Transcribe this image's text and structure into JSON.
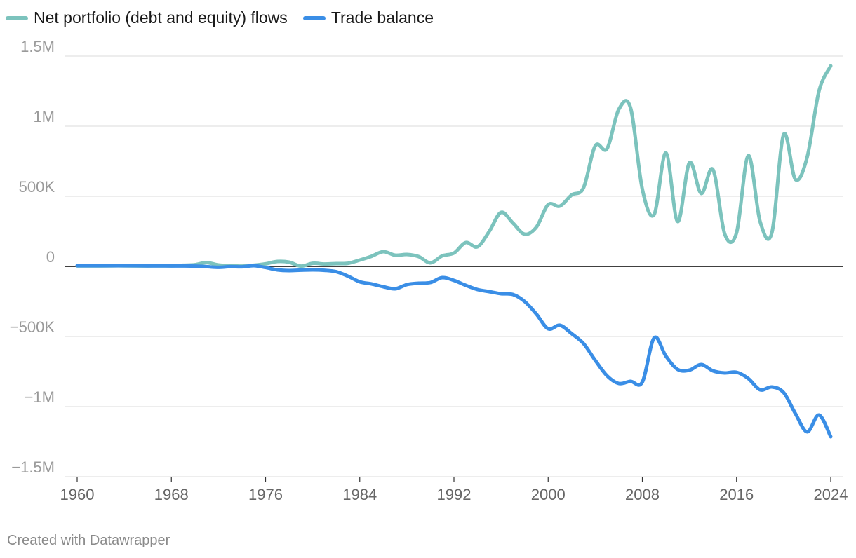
{
  "chart_data": {
    "type": "line",
    "title": "",
    "xlabel": "",
    "ylabel": "",
    "xlim": [
      1960,
      2024
    ],
    "ylim": [
      -1500000,
      1500000
    ],
    "grid": true,
    "legend_position": "top-left",
    "x_ticks": [
      1960,
      1968,
      1976,
      1984,
      1992,
      2000,
      2008,
      2016,
      2024
    ],
    "y_ticks": [
      {
        "value": 1500000,
        "label": "1.5M"
      },
      {
        "value": 1000000,
        "label": "1M"
      },
      {
        "value": 500000,
        "label": "500K"
      },
      {
        "value": 0,
        "label": "0"
      },
      {
        "value": -500000,
        "label": "−500K"
      },
      {
        "value": -1000000,
        "label": "−1M"
      },
      {
        "value": -1500000,
        "label": "−1.5M"
      }
    ],
    "x": [
      1960,
      1961,
      1962,
      1963,
      1964,
      1965,
      1966,
      1967,
      1968,
      1969,
      1970,
      1971,
      1972,
      1973,
      1974,
      1975,
      1976,
      1977,
      1978,
      1979,
      1980,
      1981,
      1982,
      1983,
      1984,
      1985,
      1986,
      1987,
      1988,
      1989,
      1990,
      1991,
      1992,
      1993,
      1994,
      1995,
      1996,
      1997,
      1998,
      1999,
      2000,
      2001,
      2002,
      2003,
      2004,
      2005,
      2006,
      2007,
      2008,
      2009,
      2010,
      2011,
      2012,
      2013,
      2014,
      2015,
      2016,
      2017,
      2018,
      2019,
      2020,
      2021,
      2022,
      2023,
      2024
    ],
    "series": [
      {
        "name": "Net portfolio (debt and equity) flows",
        "color": "#7cc3bd",
        "values": [
          3000,
          3000,
          3000,
          4000,
          4000,
          3000,
          3000,
          4000,
          4000,
          8000,
          12000,
          27000,
          10000,
          5000,
          2000,
          8000,
          18000,
          35000,
          30000,
          2000,
          22000,
          17000,
          20000,
          22000,
          45000,
          72000,
          105000,
          80000,
          85000,
          70000,
          25000,
          75000,
          95000,
          170000,
          140000,
          250000,
          385000,
          310000,
          230000,
          280000,
          440000,
          430000,
          510000,
          560000,
          860000,
          840000,
          1120000,
          1130000,
          550000,
          370000,
          810000,
          320000,
          740000,
          520000,
          690000,
          230000,
          240000,
          790000,
          320000,
          240000,
          940000,
          620000,
          780000,
          1250000,
          1430000
        ]
      },
      {
        "name": "Trade balance",
        "color": "#3a8ee6",
        "values": [
          5000,
          5000,
          5000,
          5000,
          5000,
          5000,
          4000,
          4000,
          3000,
          3000,
          2000,
          -2000,
          -7000,
          -2000,
          -3000,
          5000,
          -8000,
          -25000,
          -30000,
          -27000,
          -25000,
          -28000,
          -38000,
          -70000,
          -110000,
          -125000,
          -145000,
          -160000,
          -130000,
          -120000,
          -115000,
          -80000,
          -100000,
          -135000,
          -165000,
          -180000,
          -195000,
          -200000,
          -250000,
          -340000,
          -445000,
          -420000,
          -480000,
          -550000,
          -670000,
          -780000,
          -835000,
          -820000,
          -825000,
          -510000,
          -640000,
          -735000,
          -740000,
          -700000,
          -745000,
          -760000,
          -755000,
          -800000,
          -880000,
          -860000,
          -900000,
          -1050000,
          -1180000,
          -1060000,
          -1215000
        ]
      }
    ]
  },
  "credit": "Created with Datawrapper"
}
